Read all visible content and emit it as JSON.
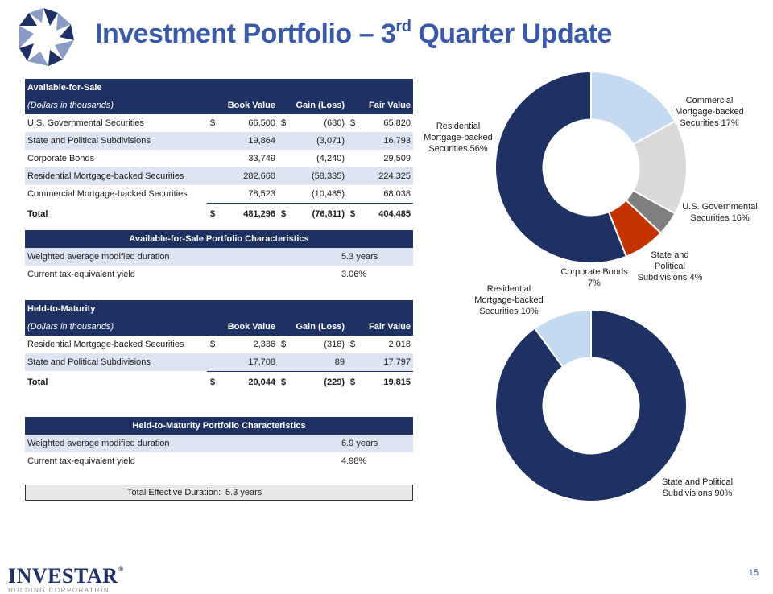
{
  "header": {
    "title_prefix": "Investment Portfolio – 3",
    "title_sup": "rd",
    "title_suffix": " Quarter Update"
  },
  "afs": {
    "title": "Available-for-Sale",
    "units": "(Dollars in thousands)",
    "col_book": "Book Value",
    "col_gain": "Gain (Loss)",
    "col_fair": "Fair Value",
    "rows": [
      {
        "label": "U.S. Governmental Securities",
        "book_cur": "$",
        "book": "66,500",
        "gain_cur": "$",
        "gain": "(680)",
        "fair_cur": "$",
        "fair": "65,820"
      },
      {
        "label": "State and Political Subdivisions",
        "book_cur": "",
        "book": "19,864",
        "gain_cur": "",
        "gain": "(3,071)",
        "fair_cur": "",
        "fair": "16,793"
      },
      {
        "label": "Corporate Bonds",
        "book_cur": "",
        "book": "33,749",
        "gain_cur": "",
        "gain": "(4,240)",
        "fair_cur": "",
        "fair": "29,509"
      },
      {
        "label": "Residential Mortgage-backed Securities",
        "book_cur": "",
        "book": "282,660",
        "gain_cur": "",
        "gain": "(58,335)",
        "fair_cur": "",
        "fair": "224,325"
      },
      {
        "label": "Commercial Mortgage-backed Securities",
        "book_cur": "",
        "book": "78,523",
        "gain_cur": "",
        "gain": "(10,485)",
        "fair_cur": "",
        "fair": "68,038"
      }
    ],
    "total": {
      "label": "Total",
      "book_cur": "$",
      "book": "481,296",
      "gain_cur": "$",
      "gain": "(76,811)",
      "fair_cur": "$",
      "fair": "404,485"
    },
    "char_title": "Available-for-Sale Portfolio Characteristics",
    "char_rows": [
      {
        "label": "Weighted average modified duration",
        "value": "5.3 years"
      },
      {
        "label": "Current tax-equivalent yield",
        "value": "3.06%"
      }
    ]
  },
  "htm": {
    "title": "Held-to-Maturity",
    "units": "(Dollars in thousands)",
    "col_book": "Book Value",
    "col_gain": "Gain (Loss)",
    "col_fair": "Fair Value",
    "rows": [
      {
        "label": "Residential Mortgage-backed Securities",
        "book_cur": "$",
        "book": "2,336",
        "gain_cur": "$",
        "gain": "(318)",
        "fair_cur": "$",
        "fair": "2,018"
      },
      {
        "label": "State and Political Subdivisions",
        "book_cur": "",
        "book": "17,708",
        "gain_cur": "",
        "gain": "89",
        "fair_cur": "",
        "fair": "17,797"
      }
    ],
    "total": {
      "label": "Total",
      "book_cur": "$",
      "book": "20,044",
      "gain_cur": "$",
      "gain": "(229)",
      "fair_cur": "$",
      "fair": "19,815"
    },
    "char_title": "Held-to-Maturity Portfolio Characteristics",
    "char_rows": [
      {
        "label": "Weighted average modified duration",
        "value": "6.9 years"
      },
      {
        "label": "Current tax-equivalent yield",
        "value": "4.98%"
      }
    ]
  },
  "effective_duration": {
    "label": "Total Effective Duration:",
    "value": "5.3 years"
  },
  "chart_data": [
    {
      "type": "pie",
      "title": "",
      "hole": 0.5,
      "slices": [
        {
          "name": "Residential Mortgage-backed Securities",
          "value": 56,
          "label_lines": [
            "Residential",
            "Mortgage-backed",
            "Securities 56%"
          ],
          "color": "#1f3163"
        },
        {
          "name": "Commercial Mortgage-backed Securities",
          "value": 17,
          "label_lines": [
            "Commercial",
            "Mortgage-backed",
            "Securities 17%"
          ],
          "color": "#c5d9f0"
        },
        {
          "name": "U.S. Governmental Securities",
          "value": 16,
          "label_lines": [
            "U.S. Governmental",
            "Securities 16%"
          ],
          "color": "#d9d9d9"
        },
        {
          "name": "State and Political Subdivisions",
          "value": 4,
          "label_lines": [
            "State and",
            "Political",
            "Subdivisions 4%"
          ],
          "color": "#7f7f7f"
        },
        {
          "name": "Corporate Bonds",
          "value": 7,
          "label_lines": [
            "Corporate Bonds",
            "7%"
          ],
          "color": "#c33300"
        }
      ]
    },
    {
      "type": "pie",
      "title": "",
      "hole": 0.5,
      "slices": [
        {
          "name": "State and Political Subdivisions",
          "value": 90,
          "label_lines": [
            "State and Political",
            "Subdivisions 90%"
          ],
          "color": "#1f3163"
        },
        {
          "name": "Residential Mortgage-backed Securities",
          "value": 10,
          "label_lines": [
            "Residential",
            "Mortgage-backed",
            "Securities 10%"
          ],
          "color": "#c5d9f0"
        }
      ]
    }
  ],
  "footer": {
    "brand": "INVESTAR",
    "brand_mark": "®",
    "sub": "HOLDING CORPORATION",
    "page": "15"
  }
}
